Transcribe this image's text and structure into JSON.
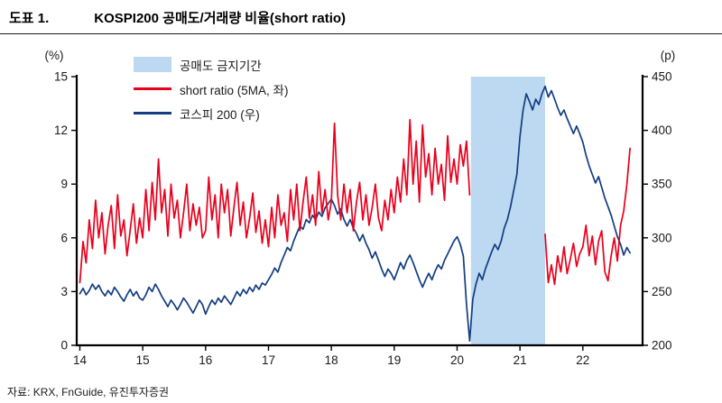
{
  "header": {
    "label": "도표 1.",
    "title": "KOSPI200 공매도/거래량 비율(short ratio)"
  },
  "footer": {
    "source": "자료: KRX, FnGuide, 유진투자증권"
  },
  "colors": {
    "short_ratio": "#e8001c",
    "kospi": "#123d80",
    "ban_fill": "#bdd9f2",
    "axis": "#000000",
    "tick_label": "#1a1a1a"
  },
  "chart_data": {
    "type": "line",
    "title": "KOSPI200 공매도/거래량 비율(short ratio)",
    "x_start": 2014.0,
    "x_step": 0.05,
    "x_axis": {
      "range": [
        2013.95,
        2022.95
      ],
      "ticks": [
        {
          "year": 2014,
          "label": "14"
        },
        {
          "year": 2015,
          "label": "15"
        },
        {
          "year": 2016,
          "label": "16"
        },
        {
          "year": 2017,
          "label": "17"
        },
        {
          "year": 2018,
          "label": "18"
        },
        {
          "year": 2019,
          "label": "19"
        },
        {
          "year": 2020,
          "label": "20"
        },
        {
          "year": 2021,
          "label": "21"
        },
        {
          "year": 2022,
          "label": "22"
        }
      ]
    },
    "left_axis": {
      "unit": "(%)",
      "min": 0,
      "max": 15,
      "ticks": [
        0,
        3,
        6,
        9,
        12,
        15
      ]
    },
    "right_axis": {
      "unit": "(p)",
      "min": 200,
      "max": 450,
      "ticks": [
        200,
        250,
        300,
        350,
        400,
        450
      ]
    },
    "shaded_region": {
      "label": "공매도 금지기간",
      "x0": 2020.22,
      "x1": 2021.4
    },
    "legend_position": "top-left-inside",
    "grid": false,
    "series": [
      {
        "name": "short ratio (5MA, 좌)",
        "axis": "left",
        "color": "short_ratio",
        "values": [
          3.5,
          5.8,
          4.6,
          7.0,
          5.4,
          8.1,
          6.0,
          7.4,
          5.1,
          6.7,
          7.8,
          5.4,
          8.4,
          6.1,
          7.0,
          5.0,
          6.4,
          7.9,
          5.7,
          7.1,
          6.0,
          8.7,
          6.4,
          9.1,
          7.0,
          10.4,
          7.4,
          8.7,
          6.1,
          9.0,
          7.1,
          8.1,
          6.0,
          7.4,
          9.0,
          6.4,
          7.9,
          6.7,
          7.7,
          6.0,
          6.4,
          9.4,
          7.0,
          8.4,
          6.0,
          9.0,
          7.4,
          8.7,
          6.1,
          7.7,
          9.1,
          6.7,
          8.0,
          6.0,
          7.1,
          8.5,
          6.3,
          7.5,
          5.7,
          7.0,
          5.5,
          7.7,
          6.0,
          8.4,
          6.7,
          7.4,
          5.8,
          8.7,
          7.0,
          9.0,
          6.4,
          8.0,
          9.4,
          7.1,
          8.4,
          6.7,
          9.7,
          7.4,
          8.7,
          7.0,
          8.0,
          12.4,
          8.4,
          7.0,
          9.0,
          7.4,
          8.7,
          6.4,
          8.0,
          9.1,
          7.0,
          8.4,
          6.7,
          7.7,
          9.0,
          7.1,
          6.4,
          8.1,
          7.0,
          8.7,
          7.4,
          9.4,
          8.0,
          10.4,
          8.4,
          12.6,
          9.0,
          11.4,
          8.0,
          12.3,
          9.4,
          10.7,
          8.4,
          11.0,
          9.0,
          10.1,
          8.1,
          11.7,
          9.1,
          10.4,
          9.0,
          11.2,
          10.0,
          11.4,
          8.4,
          null,
          null,
          null,
          null,
          null,
          null,
          null,
          null,
          null,
          null,
          null,
          null,
          null,
          null,
          null,
          null,
          null,
          null,
          null,
          null,
          null,
          null,
          null,
          6.2,
          3.5,
          4.5,
          3.4,
          5.0,
          4.1,
          5.5,
          4.0,
          4.8,
          5.7,
          4.4,
          5.1,
          5.5,
          6.7,
          5.0,
          6.1,
          4.5,
          5.8,
          6.4,
          4.1,
          3.6,
          5.0,
          6.0,
          4.7,
          6.7,
          7.5,
          9.0,
          11.0
        ]
      },
      {
        "name": "코스피 200 (우)",
        "axis": "right",
        "color": "kospi",
        "values": [
          248,
          253,
          247,
          251,
          257,
          252,
          256,
          250,
          246,
          251,
          247,
          254,
          250,
          245,
          241,
          247,
          252,
          246,
          250,
          244,
          242,
          247,
          254,
          250,
          257,
          252,
          246,
          241,
          236,
          242,
          238,
          233,
          238,
          244,
          240,
          235,
          230,
          236,
          242,
          238,
          229,
          236,
          242,
          238,
          244,
          240,
          246,
          242,
          238,
          244,
          250,
          246,
          252,
          248,
          254,
          250,
          256,
          252,
          258,
          256,
          261,
          266,
          272,
          268,
          277,
          284,
          291,
          288,
          297,
          304,
          311,
          308,
          317,
          314,
          321,
          317,
          324,
          320,
          328,
          332,
          336,
          330,
          322,
          327,
          317,
          311,
          317,
          309,
          304,
          297,
          303,
          295,
          289,
          281,
          287,
          279,
          271,
          264,
          271,
          267,
          261,
          269,
          277,
          271,
          279,
          284,
          277,
          269,
          261,
          254,
          261,
          267,
          261,
          269,
          275,
          271,
          279,
          285,
          291,
          297,
          301,
          294,
          283,
          238,
          204,
          243,
          257,
          267,
          261,
          271,
          279,
          287,
          294,
          289,
          297,
          309,
          317,
          329,
          344,
          359,
          394,
          419,
          434,
          427,
          419,
          429,
          424,
          434,
          441,
          431,
          437,
          429,
          421,
          414,
          419,
          411,
          404,
          397,
          404,
          397,
          389,
          377,
          367,
          359,
          351,
          357,
          347,
          337,
          329,
          321,
          311,
          301,
          294,
          284,
          291,
          286
        ]
      }
    ]
  }
}
